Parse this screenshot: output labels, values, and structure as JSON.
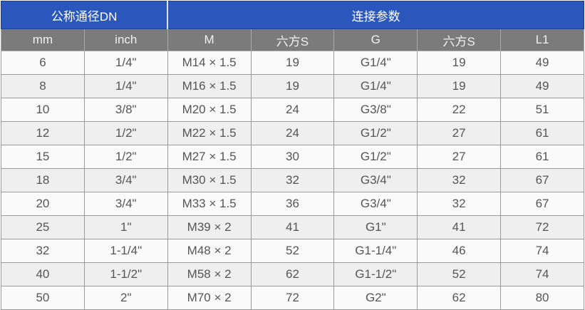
{
  "header": {
    "group1": "公称通径DN",
    "group2": "连接参数",
    "columns": [
      "mm",
      "inch",
      "M",
      "六方S",
      "G",
      "六方S",
      "L1"
    ]
  },
  "colors": {
    "header_blue": "#2b57bd",
    "subheader_gray": "#7b7b7b"
  },
  "rows": [
    [
      "6",
      "1/4\"",
      "M14 × 1.5",
      "19",
      "G1/4\"",
      "19",
      "49"
    ],
    [
      "8",
      "1/4\"",
      "M16 × 1.5",
      "19",
      "G1/4\"",
      "19",
      "49"
    ],
    [
      "10",
      "3/8\"",
      "M20 × 1.5",
      "24",
      "G3/8\"",
      "22",
      "51"
    ],
    [
      "12",
      "1/2\"",
      "M22 × 1.5",
      "24",
      "G1/2\"",
      "27",
      "61"
    ],
    [
      "15",
      "1/2\"",
      "M27 × 1.5",
      "30",
      "G1/2\"",
      "27",
      "61"
    ],
    [
      "18",
      "3/4\"",
      "M30 × 1.5",
      "32",
      "G3/4\"",
      "32",
      "67"
    ],
    [
      "20",
      "3/4\"",
      "M33 × 1.5",
      "36",
      "G3/4\"",
      "32",
      "67"
    ],
    [
      "25",
      "1\"",
      "M39 × 2",
      "41",
      "G1\"",
      "41",
      "72"
    ],
    [
      "32",
      "1-1/4\"",
      "M48 × 2",
      "52",
      "G1-1/4\"",
      "46",
      "74"
    ],
    [
      "40",
      "1-1/2\"",
      "M58 × 2",
      "62",
      "G1-1/2\"",
      "52",
      "74"
    ],
    [
      "50",
      "2\"",
      "M70 × 2",
      "72",
      "G2\"",
      "62",
      "80"
    ]
  ]
}
